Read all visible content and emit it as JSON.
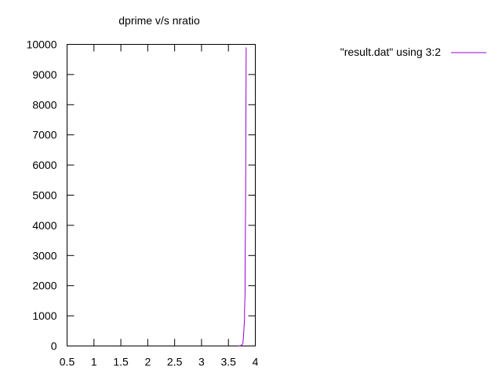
{
  "chart_data": {
    "type": "line",
    "title": "dprime v/s nratio",
    "xlabel": "",
    "ylabel": "",
    "xlim": [
      0.5,
      4
    ],
    "ylim": [
      0,
      10000
    ],
    "xticks": [
      "0.5",
      "1",
      "1.5",
      "2",
      "2.5",
      "3",
      "3.5",
      "4"
    ],
    "yticks": [
      "0",
      "1000",
      "2000",
      "3000",
      "4000",
      "5000",
      "6000",
      "7000",
      "8000",
      "9000",
      "10000"
    ],
    "grid": false,
    "legend_position": "top-right",
    "series": [
      {
        "name": "\"result.dat\" using 3:2",
        "color": "#9400d3",
        "x": [
          3.68,
          3.73,
          3.76,
          3.77,
          3.78,
          3.79,
          3.8,
          3.8,
          3.81,
          3.81,
          3.82,
          3.83
        ],
        "y": [
          0,
          10,
          50,
          100,
          300,
          600,
          900,
          1200,
          1800,
          2500,
          5000,
          9900
        ]
      }
    ]
  }
}
